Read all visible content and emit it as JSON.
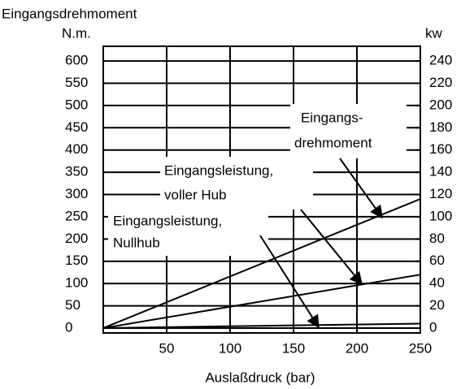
{
  "chart_data": {
    "type": "line",
    "ylabel": "Eingangsdrehmoment",
    "yunit": "N.m.",
    "y2unit": "kw",
    "xlabel": "Auslaßdruck (bar)",
    "x": [
      0,
      250
    ],
    "series": [
      {
        "color": "#000000",
        "values": [
          0,
          290
        ]
      },
      {
        "color": "#000000",
        "values": [
          0,
          48
        ],
        "axis": "y2"
      },
      {
        "color": "#000000",
        "values": [
          0,
          4
        ],
        "axis": "y2"
      }
    ],
    "xlim": [
      0,
      250
    ],
    "xticks": [
      50,
      100,
      150,
      200,
      250
    ],
    "ylim": [
      -11,
      633
    ],
    "yticks": [
      0,
      50,
      100,
      150,
      200,
      250,
      300,
      350,
      400,
      450,
      500,
      550,
      600
    ],
    "y2lim": [
      -4.4,
      253.2
    ],
    "y2ticks": [
      0,
      20,
      40,
      60,
      80,
      100,
      120,
      140,
      160,
      180,
      200,
      220,
      240
    ],
    "grid": true,
    "annotations": [
      {
        "lines": [
          "Eingangs-",
          "drehmoment"
        ]
      },
      {
        "lines": [
          "Eingangsleistung,",
          "voller Hub"
        ]
      },
      {
        "lines": [
          "Eingangsleistung,",
          "Nullhub"
        ]
      }
    ]
  }
}
